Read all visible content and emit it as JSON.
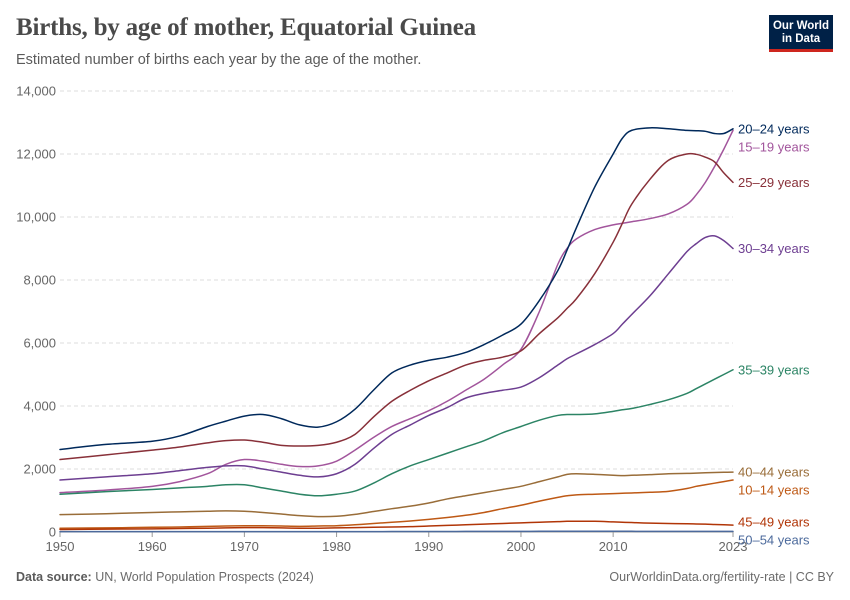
{
  "header": {
    "title": "Births, by age of mother, Equatorial Guinea",
    "subtitle": "Estimated number of births each year by the age of the mother."
  },
  "logo": {
    "line1": "Our World",
    "line2": "in Data"
  },
  "footer": {
    "source_label": "Data source:",
    "source_text": "UN, World Population Prospects (2024)",
    "right_text": "OurWorldinData.org/fertility-rate | CC BY"
  },
  "chart_data": {
    "type": "line",
    "title": "Births, by age of mother, Equatorial Guinea",
    "xlabel": "",
    "ylabel": "",
    "xlim": [
      1950,
      2023
    ],
    "ylim": [
      0,
      14000
    ],
    "x_ticks": [
      "1950",
      "1960",
      "1970",
      "1980",
      "1990",
      "2000",
      "2010",
      "2023"
    ],
    "y_ticks": [
      "0",
      "2,000",
      "4,000",
      "6,000",
      "8,000",
      "10,000",
      "12,000",
      "14,000"
    ],
    "grid": "horizontal dashed",
    "legend": "right (line-end labels)",
    "x": [
      1950,
      1955,
      1960,
      1963,
      1966,
      1968,
      1970,
      1972,
      1974,
      1976,
      1978,
      1980,
      1982,
      1984,
      1986,
      1988,
      1990,
      1992,
      1994,
      1996,
      1998,
      2000,
      2002,
      2004,
      2005,
      2006,
      2008,
      2010,
      2011,
      2012,
      2014,
      2016,
      2018,
      2019,
      2020,
      2021,
      2022,
      2023
    ],
    "series": [
      {
        "name": "15–19 years",
        "color": "#a2559c",
        "values": [
          1250,
          1330,
          1450,
          1600,
          1850,
          2150,
          2300,
          2250,
          2150,
          2080,
          2100,
          2250,
          2600,
          3000,
          3350,
          3600,
          3850,
          4150,
          4500,
          4850,
          5300,
          5800,
          7000,
          8500,
          9000,
          9300,
          9600,
          9750,
          9800,
          9850,
          9950,
          10100,
          10400,
          10700,
          11100,
          11600,
          12150,
          12750
        ]
      },
      {
        "name": "20–24 years",
        "color": "#00295b",
        "values": [
          2620,
          2780,
          2880,
          3050,
          3350,
          3520,
          3680,
          3730,
          3600,
          3400,
          3330,
          3500,
          3900,
          4500,
          5050,
          5300,
          5450,
          5550,
          5700,
          5950,
          6250,
          6600,
          7350,
          8300,
          8950,
          9650,
          10950,
          12000,
          12500,
          12750,
          12830,
          12800,
          12750,
          12740,
          12720,
          12650,
          12650,
          12800
        ]
      },
      {
        "name": "25–29 years",
        "color": "#883039",
        "values": [
          2300,
          2450,
          2600,
          2700,
          2830,
          2900,
          2920,
          2850,
          2750,
          2730,
          2750,
          2850,
          3100,
          3650,
          4150,
          4500,
          4800,
          5050,
          5300,
          5450,
          5550,
          5750,
          6300,
          6800,
          7100,
          7400,
          8200,
          9200,
          9800,
          10400,
          11200,
          11800,
          12000,
          11990,
          11900,
          11750,
          11400,
          11100
        ]
      },
      {
        "name": "30–34 years",
        "color": "#6d3e91",
        "values": [
          1650,
          1750,
          1850,
          1950,
          2050,
          2100,
          2100,
          2000,
          1900,
          1800,
          1750,
          1850,
          2150,
          2650,
          3100,
          3400,
          3700,
          3950,
          4250,
          4400,
          4500,
          4600,
          4900,
          5300,
          5500,
          5650,
          5950,
          6300,
          6600,
          6900,
          7500,
          8200,
          8900,
          9150,
          9350,
          9400,
          9250,
          9000
        ]
      },
      {
        "name": "35–39 years",
        "color": "#2c8465",
        "values": [
          1200,
          1280,
          1350,
          1400,
          1450,
          1500,
          1500,
          1400,
          1300,
          1200,
          1150,
          1200,
          1300,
          1550,
          1850,
          2100,
          2300,
          2500,
          2700,
          2900,
          3150,
          3350,
          3550,
          3700,
          3730,
          3730,
          3750,
          3830,
          3880,
          3920,
          4050,
          4200,
          4400,
          4550,
          4700,
          4850,
          5000,
          5150
        ]
      },
      {
        "name": "40–44 years",
        "color": "#996d39",
        "values": [
          550,
          580,
          620,
          640,
          660,
          670,
          660,
          620,
          570,
          520,
          490,
          500,
          560,
          650,
          740,
          820,
          920,
          1050,
          1150,
          1250,
          1350,
          1450,
          1600,
          1750,
          1830,
          1850,
          1830,
          1800,
          1790,
          1800,
          1820,
          1850,
          1860,
          1870,
          1880,
          1890,
          1895,
          1900
        ]
      },
      {
        "name": "10–14 years",
        "color": "#be5915",
        "values": [
          120,
          130,
          150,
          160,
          180,
          190,
          200,
          200,
          190,
          180,
          190,
          200,
          230,
          270,
          310,
          350,
          400,
          460,
          530,
          620,
          740,
          850,
          980,
          1100,
          1150,
          1180,
          1200,
          1220,
          1230,
          1240,
          1260,
          1290,
          1380,
          1450,
          1500,
          1550,
          1600,
          1650
        ]
      },
      {
        "name": "45–49 years",
        "color": "#b13507",
        "values": [
          80,
          90,
          100,
          110,
          120,
          130,
          140,
          140,
          130,
          120,
          120,
          130,
          140,
          150,
          160,
          170,
          190,
          210,
          230,
          250,
          270,
          290,
          310,
          330,
          340,
          340,
          340,
          320,
          310,
          300,
          280,
          270,
          260,
          255,
          250,
          240,
          230,
          220
        ]
      },
      {
        "name": "50–54 years",
        "color": "#4c6a9c",
        "values": [
          10,
          10,
          11,
          11,
          12,
          12,
          12,
          12,
          12,
          11,
          11,
          11,
          12,
          13,
          14,
          15,
          16,
          17,
          18,
          19,
          20,
          21,
          22,
          23,
          23,
          23,
          23,
          22,
          22,
          22,
          21,
          21,
          20,
          20,
          20,
          20,
          20,
          20
        ]
      }
    ]
  }
}
